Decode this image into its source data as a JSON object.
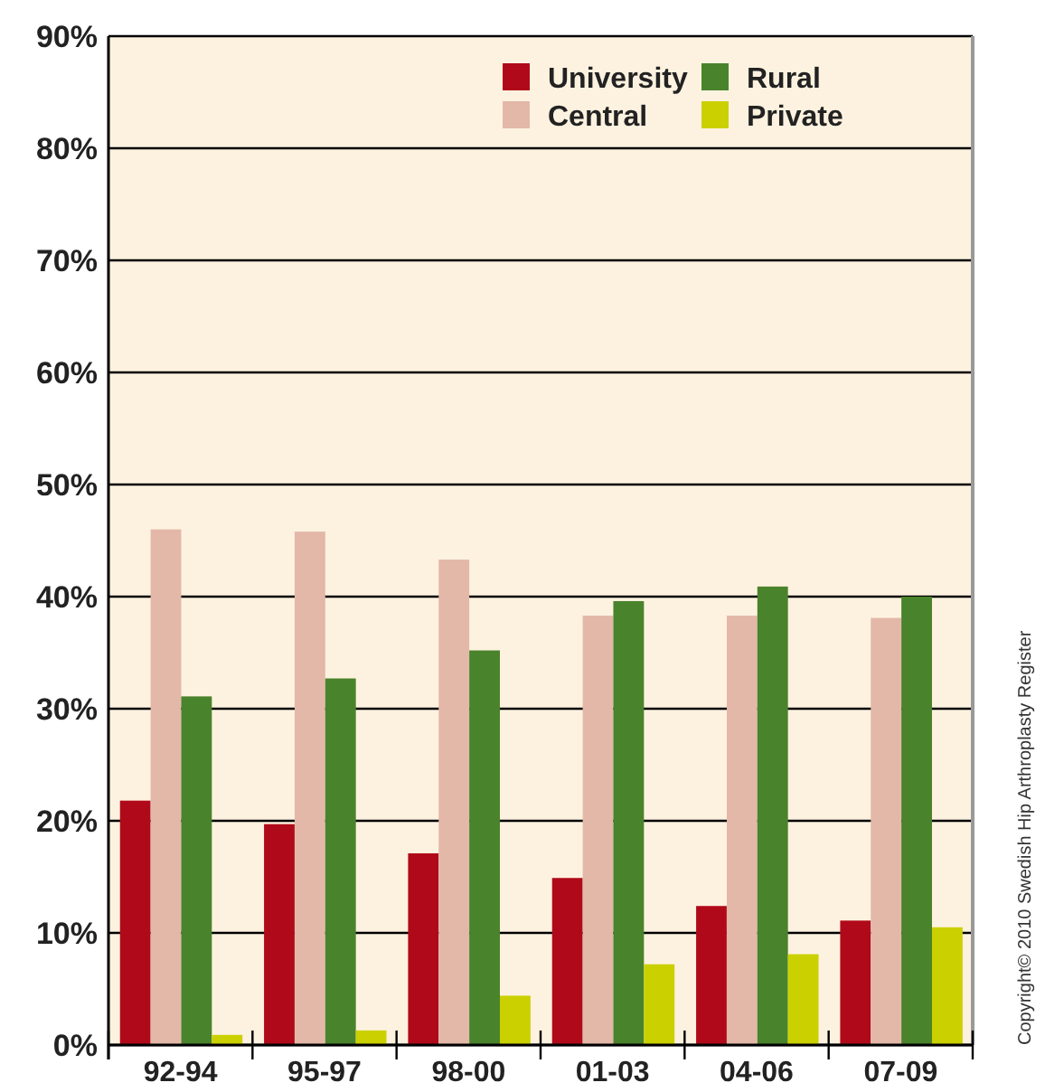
{
  "chart_data": {
    "type": "bar",
    "categories": [
      "92-94",
      "95-97",
      "98-00",
      "01-03",
      "04-06",
      "07-09"
    ],
    "series": [
      {
        "name": "University",
        "color": "#b00a1a",
        "values": [
          21.8,
          19.7,
          17.1,
          14.9,
          12.4,
          11.1
        ]
      },
      {
        "name": "Central",
        "color": "#e3b8a8",
        "values": [
          46.0,
          45.8,
          43.3,
          38.3,
          38.3,
          38.1
        ]
      },
      {
        "name": "Rural",
        "color": "#49832b",
        "values": [
          31.1,
          32.7,
          35.2,
          39.6,
          40.9,
          40.0
        ]
      },
      {
        "name": "Private",
        "color": "#cbd000",
        "values": [
          0.9,
          1.3,
          4.4,
          7.2,
          8.1,
          10.5
        ]
      }
    ],
    "ylim": [
      0,
      90
    ],
    "yticks": [
      {
        "value": 0,
        "label": "0%"
      },
      {
        "value": 10,
        "label": "10%"
      },
      {
        "value": 20,
        "label": "20%"
      },
      {
        "value": 30,
        "label": "30%"
      },
      {
        "value": 40,
        "label": "40%"
      },
      {
        "value": 50,
        "label": "50%"
      },
      {
        "value": 60,
        "label": "60%"
      },
      {
        "value": 70,
        "label": "70%"
      },
      {
        "value": 80,
        "label": "80%"
      },
      {
        "value": 90,
        "label": "90%"
      }
    ],
    "grid": "y",
    "legend": "top right",
    "annotations": [
      "Copyright© 2010 Swedish Hip Arthroplasty Register"
    ]
  }
}
